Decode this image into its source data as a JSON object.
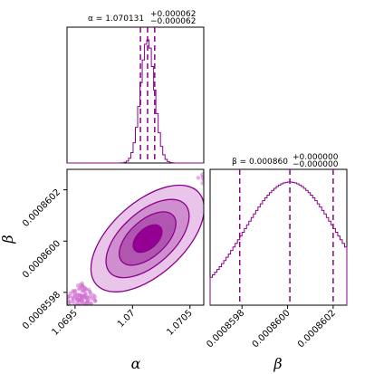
{
  "chart_data": [
    {
      "type": "histogram",
      "panel": "alpha-marginal",
      "title": {
        "main": "α = 1.070131",
        "sup": "+0.000062",
        "sub": "−0.000062"
      },
      "xlim": [
        1.06943,
        1.07062
      ],
      "quantiles": [
        1.070069,
        1.070131,
        1.070193
      ],
      "distribution": {
        "mean": 1.070131,
        "sd": 6.1e-05
      },
      "color": "#8b008b"
    },
    {
      "type": "histogram",
      "panel": "beta-marginal",
      "title": {
        "main": "β = 0.000860",
        "sup": "+0.000000",
        "sub": "−0.000000"
      },
      "xlim": [
        0.00085966,
        0.00086026
      ],
      "quantiles": [
        0.00085979,
        0.00086001,
        0.0008602
      ],
      "distribution": {
        "mean": 0.00086001,
        "sd": 2e-07
      },
      "xticks": [
        {
          "value": 0.0008598,
          "label": "0.0008598"
        },
        {
          "value": 0.00086,
          "label": "0.0008600"
        },
        {
          "value": 0.0008602,
          "label": "0.0008602"
        }
      ],
      "xlabel": "β",
      "color": "#8b008b"
    },
    {
      "type": "scatter",
      "panel": "alpha-beta-joint",
      "subtype": "2d-density-contours",
      "xlim": [
        1.06943,
        1.07062
      ],
      "ylim": [
        0.00085975,
        0.00086028
      ],
      "center": {
        "alpha": 1.070131,
        "beta": 0.00086001
      },
      "xticks": [
        {
          "value": 1.0695,
          "label": "1.0695"
        },
        {
          "value": 1.07,
          "label": "1.07"
        },
        {
          "value": 1.0705,
          "label": "1.0705"
        }
      ],
      "yticks": [
        {
          "value": 0.0008598,
          "label": "0.0008598"
        },
        {
          "value": 0.00086,
          "label": "0.0008600"
        },
        {
          "value": 0.0008602,
          "label": "0.0008602"
        }
      ],
      "xlabel": "α",
      "ylabel": "β",
      "contour_levels": [
        {
          "level": "outer",
          "fill": "#e9c6e9"
        },
        {
          "level": "middle",
          "fill": "#cf8fcf"
        },
        {
          "level": "inner",
          "fill": "#b056b0"
        },
        {
          "level": "core",
          "fill": "#930093"
        }
      ],
      "color": "#8b008b"
    }
  ]
}
